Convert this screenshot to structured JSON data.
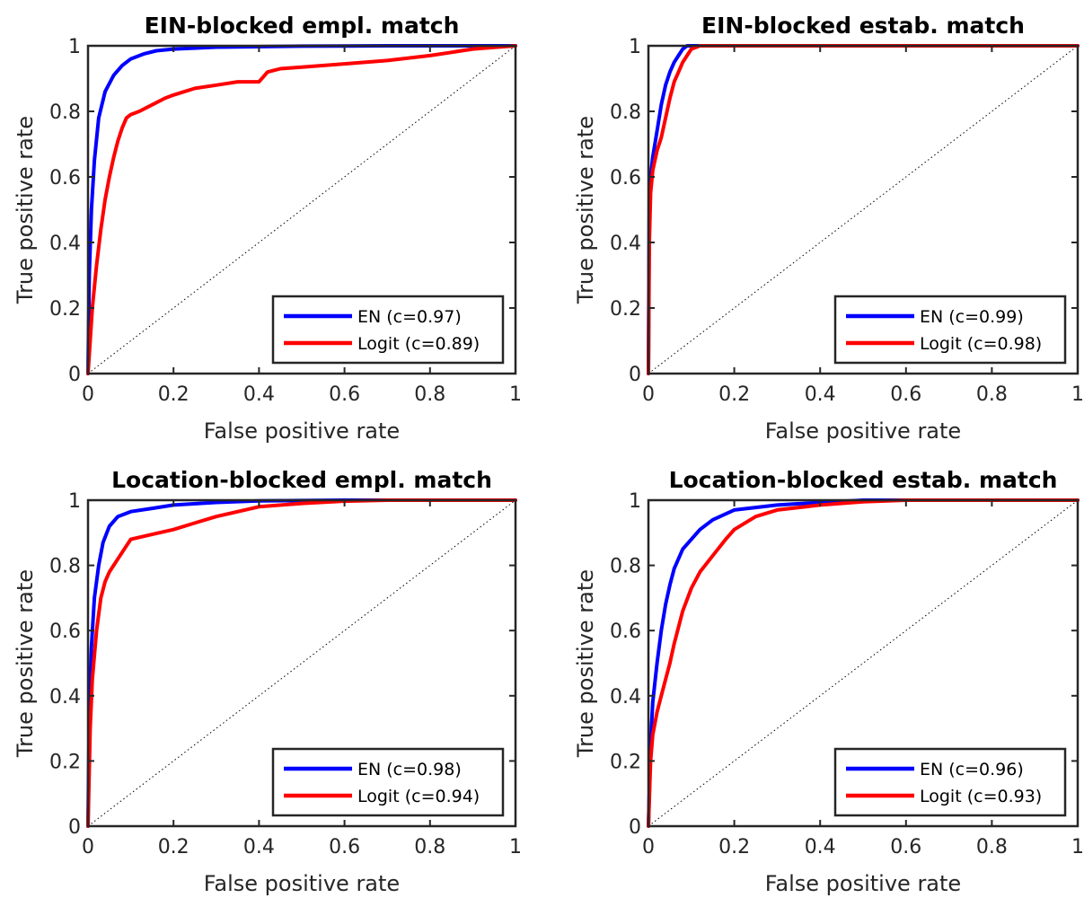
{
  "colors": {
    "en": "#0000ff",
    "logit": "#ff0000",
    "axis": "#262626",
    "diag": "#000000"
  },
  "chart_data": [
    {
      "type": "line",
      "title": "EIN-blocked empl. match",
      "xlabel": "False positive rate",
      "ylabel": "True positive rate",
      "xlim": [
        0,
        1
      ],
      "ylim": [
        0,
        1
      ],
      "xticks": [
        "0",
        "0.2",
        "0.4",
        "0.6",
        "0.8",
        "1"
      ],
      "yticks": [
        "0",
        "0.2",
        "0.4",
        "0.6",
        "0.8",
        "1"
      ],
      "legend_position": "bottom-right",
      "series": [
        {
          "name": "EN (c=0.97)",
          "color": "#0000ff",
          "x": [
            0,
            0.003,
            0.008,
            0.015,
            0.025,
            0.04,
            0.06,
            0.08,
            0.1,
            0.13,
            0.16,
            0.2,
            0.3,
            0.5,
            0.7,
            1
          ],
          "y": [
            0,
            0.3,
            0.5,
            0.65,
            0.78,
            0.86,
            0.91,
            0.94,
            0.96,
            0.975,
            0.985,
            0.99,
            0.996,
            0.999,
            1,
            1
          ]
        },
        {
          "name": "Logit (c=0.89)",
          "color": "#ff0000",
          "x": [
            0,
            0.005,
            0.01,
            0.02,
            0.03,
            0.04,
            0.05,
            0.06,
            0.07,
            0.08,
            0.09,
            0.1,
            0.12,
            0.15,
            0.18,
            0.2,
            0.25,
            0.3,
            0.35,
            0.4,
            0.42,
            0.45,
            0.5,
            0.6,
            0.7,
            0.8,
            0.85,
            0.9,
            0.95,
            1
          ],
          "y": [
            0,
            0.1,
            0.2,
            0.33,
            0.44,
            0.53,
            0.6,
            0.66,
            0.71,
            0.75,
            0.78,
            0.79,
            0.8,
            0.82,
            0.84,
            0.85,
            0.87,
            0.88,
            0.89,
            0.89,
            0.92,
            0.93,
            0.935,
            0.945,
            0.955,
            0.97,
            0.98,
            0.99,
            0.995,
            1
          ]
        }
      ]
    },
    {
      "type": "line",
      "title": "EIN-blocked estab. match",
      "xlabel": "False positive rate",
      "ylabel": "True positive rate",
      "xlim": [
        0,
        1
      ],
      "ylim": [
        0,
        1
      ],
      "xticks": [
        "0",
        "0.2",
        "0.4",
        "0.6",
        "0.8",
        "1"
      ],
      "yticks": [
        "0",
        "0.2",
        "0.4",
        "0.6",
        "0.8",
        "1"
      ],
      "legend_position": "bottom-right",
      "series": [
        {
          "name": "EN (c=0.99)",
          "color": "#0000ff",
          "x": [
            0,
            0.002,
            0.005,
            0.01,
            0.02,
            0.03,
            0.04,
            0.05,
            0.06,
            0.07,
            0.08,
            0.09,
            0.1,
            0.2,
            1
          ],
          "y": [
            0,
            0.55,
            0.6,
            0.66,
            0.74,
            0.82,
            0.88,
            0.92,
            0.95,
            0.97,
            0.99,
            1,
            1,
            1,
            1
          ]
        },
        {
          "name": "Logit (c=0.98)",
          "color": "#ff0000",
          "x": [
            0,
            0.002,
            0.005,
            0.01,
            0.02,
            0.03,
            0.04,
            0.05,
            0.06,
            0.07,
            0.08,
            0.09,
            0.1,
            0.12,
            0.2,
            1
          ],
          "y": [
            0,
            0.4,
            0.55,
            0.62,
            0.68,
            0.72,
            0.78,
            0.84,
            0.89,
            0.92,
            0.95,
            0.97,
            0.99,
            1,
            1,
            1
          ]
        }
      ]
    },
    {
      "type": "line",
      "title": "Location-blocked empl. match",
      "xlabel": "False positive rate",
      "ylabel": "True positive rate",
      "xlim": [
        0,
        1
      ],
      "ylim": [
        0,
        1
      ],
      "xticks": [
        "0",
        "0.2",
        "0.4",
        "0.6",
        "0.8",
        "1"
      ],
      "yticks": [
        "0",
        "0.2",
        "0.4",
        "0.6",
        "0.8",
        "1"
      ],
      "legend_position": "bottom-right",
      "series": [
        {
          "name": "EN (c=0.98)",
          "color": "#0000ff",
          "x": [
            0,
            0.003,
            0.008,
            0.015,
            0.025,
            0.035,
            0.05,
            0.07,
            0.1,
            0.15,
            0.2,
            0.3,
            0.4,
            0.6,
            1
          ],
          "y": [
            0,
            0.35,
            0.55,
            0.7,
            0.8,
            0.87,
            0.92,
            0.95,
            0.965,
            0.975,
            0.985,
            0.993,
            0.998,
            1,
            1
          ]
        },
        {
          "name": "Logit (c=0.94)",
          "color": "#ff0000",
          "x": [
            0,
            0.005,
            0.01,
            0.02,
            0.03,
            0.04,
            0.05,
            0.07,
            0.09,
            0.1,
            0.15,
            0.2,
            0.25,
            0.3,
            0.4,
            0.5,
            0.6,
            0.7,
            1
          ],
          "y": [
            0,
            0.3,
            0.45,
            0.6,
            0.7,
            0.75,
            0.78,
            0.82,
            0.86,
            0.88,
            0.895,
            0.91,
            0.93,
            0.95,
            0.98,
            0.99,
            0.997,
            1,
            1
          ]
        }
      ]
    },
    {
      "type": "line",
      "title": "Location-blocked estab. match",
      "xlabel": "False positive rate",
      "ylabel": "True positive rate",
      "xlim": [
        0,
        1
      ],
      "ylim": [
        0,
        1
      ],
      "xticks": [
        "0",
        "0.2",
        "0.4",
        "0.6",
        "0.8",
        "1"
      ],
      "yticks": [
        "0",
        "0.2",
        "0.4",
        "0.6",
        "0.8",
        "1"
      ],
      "legend_position": "bottom-right",
      "series": [
        {
          "name": "EN (c=0.96)",
          "color": "#0000ff",
          "x": [
            0,
            0.005,
            0.01,
            0.02,
            0.03,
            0.04,
            0.05,
            0.06,
            0.08,
            0.1,
            0.12,
            0.15,
            0.2,
            0.3,
            0.4,
            0.5,
            1
          ],
          "y": [
            0,
            0.25,
            0.38,
            0.5,
            0.6,
            0.68,
            0.74,
            0.79,
            0.85,
            0.88,
            0.91,
            0.94,
            0.97,
            0.985,
            0.993,
            1,
            1
          ]
        },
        {
          "name": "Logit (c=0.93)",
          "color": "#ff0000",
          "x": [
            0,
            0.005,
            0.01,
            0.02,
            0.03,
            0.04,
            0.05,
            0.06,
            0.08,
            0.1,
            0.12,
            0.15,
            0.18,
            0.2,
            0.25,
            0.3,
            0.4,
            0.5,
            0.6,
            1
          ],
          "y": [
            0,
            0.2,
            0.28,
            0.35,
            0.4,
            0.45,
            0.5,
            0.56,
            0.66,
            0.73,
            0.78,
            0.83,
            0.88,
            0.91,
            0.95,
            0.97,
            0.985,
            0.995,
            1,
            1
          ]
        }
      ]
    }
  ]
}
